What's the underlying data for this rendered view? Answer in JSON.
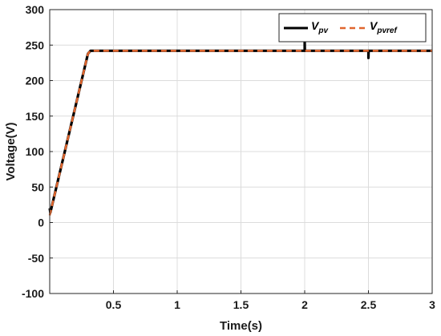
{
  "chart_data": {
    "type": "line",
    "xlabel": "Time(s)",
    "ylabel": "Voltage(V)",
    "xlim": [
      0,
      3
    ],
    "ylim": [
      -100,
      300
    ],
    "xticks": [
      0.5,
      1,
      1.5,
      2,
      2.5,
      3
    ],
    "xtick_labels": [
      "0.5",
      "1",
      "1.5",
      "2",
      "2.5",
      "3"
    ],
    "yticks": [
      -100,
      -50,
      0,
      50,
      100,
      150,
      200,
      250,
      300
    ],
    "ytick_labels": [
      "-100",
      "-50",
      "0",
      "50",
      "100",
      "150",
      "200",
      "250",
      "300"
    ],
    "grid": true,
    "legend_position": "top-right",
    "legend_orientation": "horizontal",
    "series": [
      {
        "name": "V",
        "name_subscript": "pv",
        "color": "#000000",
        "style": "solid",
        "x": [
          0,
          0.005,
          0.3,
          0.32,
          1.0,
          1.99,
          2.0,
          2.0,
          2.001,
          2.01,
          2.49,
          2.5,
          2.5,
          2.501,
          2.51,
          3.0
        ],
        "y": [
          20,
          14,
          238,
          242,
          242,
          242,
          242,
          255,
          242,
          242,
          242,
          242,
          232,
          242,
          242,
          242
        ]
      },
      {
        "name": "V",
        "name_subscript": "pvref",
        "color": "#e0662e",
        "style": "dashed",
        "x": [
          0,
          0.3,
          0.32,
          1.0,
          2.0,
          2.5,
          3.0
        ],
        "y": [
          10,
          238,
          242,
          242,
          242,
          242,
          242
        ]
      }
    ]
  }
}
